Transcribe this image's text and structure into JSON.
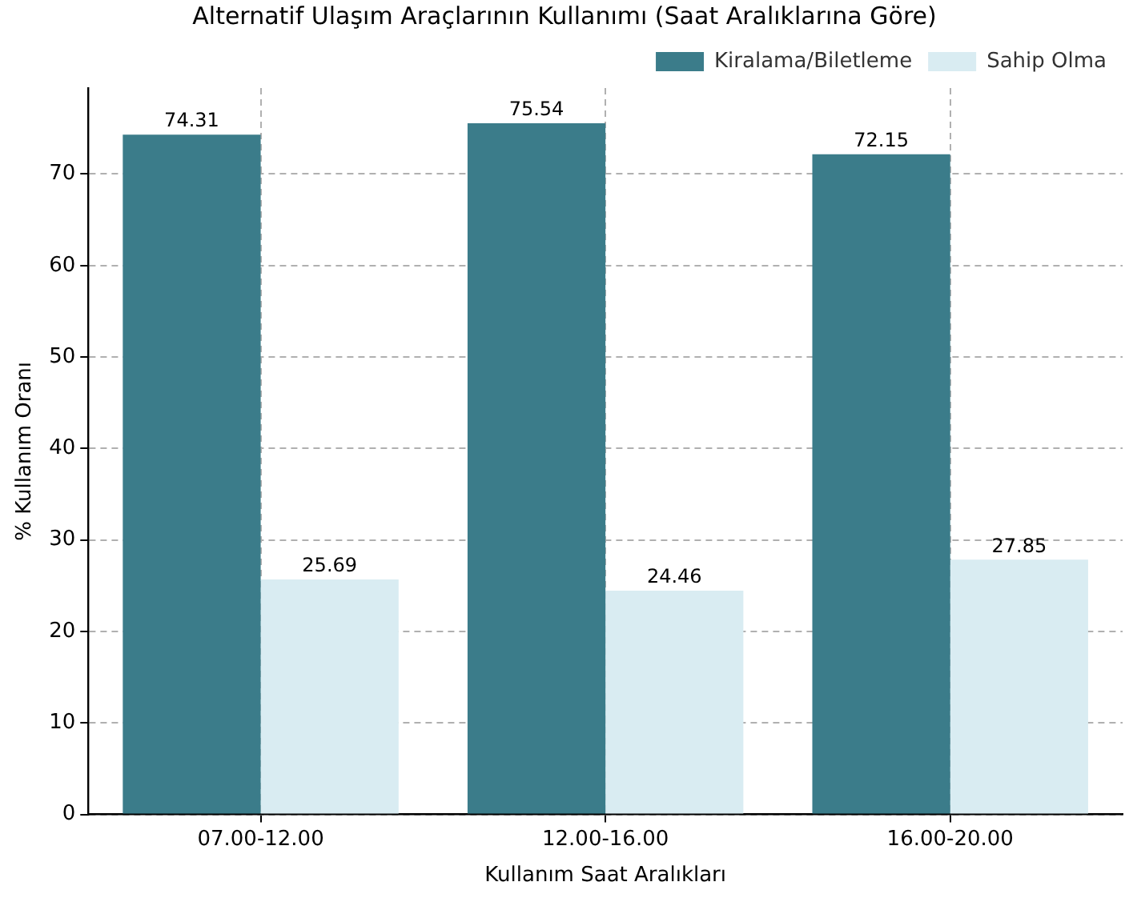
{
  "chart_data": {
    "type": "bar",
    "title": "Alternatif Ulaşım Araçlarının Kullanımı (Saat Aralıklarına Göre)",
    "xlabel": "Kullanım Saat Aralıkları",
    "ylabel": "% Kullanım Oranı",
    "categories": [
      "07.00-12.00",
      "12.00-16.00",
      "16.00-20.00"
    ],
    "series": [
      {
        "name": "Kiralama/Biletleme",
        "color": "#3b7c8a",
        "values": [
          74.31,
          75.54,
          72.15
        ]
      },
      {
        "name": "Sahip Olma",
        "color": "#d9ecf2",
        "values": [
          25.69,
          24.46,
          27.85
        ]
      }
    ],
    "ylim": [
      0,
      79.4
    ],
    "yticks": [
      0,
      10,
      20,
      30,
      40,
      50,
      60,
      70
    ],
    "grid": true,
    "legend": "top right",
    "data_labels": true
  }
}
